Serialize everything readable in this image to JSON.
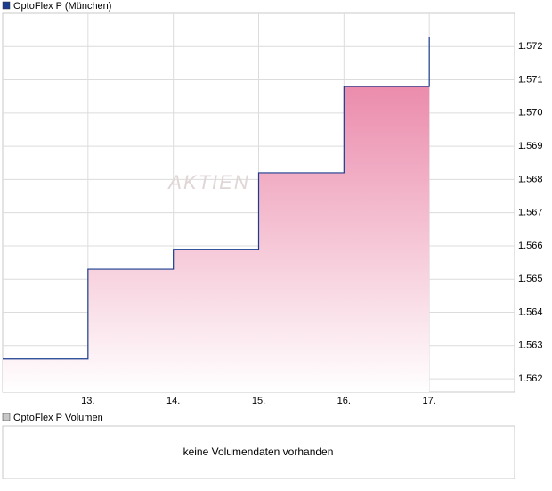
{
  "chart_data": {
    "type": "step-area",
    "title": "OptoFlex P (München)",
    "watermark": "AKTIEN",
    "x": [
      12,
      13,
      13,
      14,
      14,
      15,
      15,
      16,
      16,
      17,
      17
    ],
    "series": [
      {
        "name": "OptoFlex P (München)",
        "color": "#1a3d8f",
        "fill": "#e8799f",
        "values": [
          1.5626,
          1.5626,
          1.5653,
          1.5653,
          1.5659,
          1.5659,
          1.5682,
          1.5682,
          1.5708,
          1.5708,
          1.5723
        ]
      }
    ],
    "xlim": [
      12,
      18
    ],
    "xticks": [
      {
        "value": 13,
        "label": "13."
      },
      {
        "value": 14,
        "label": "14."
      },
      {
        "value": 15,
        "label": "15."
      },
      {
        "value": 16,
        "label": "16."
      },
      {
        "value": 17,
        "label": "17."
      }
    ],
    "ylim": [
      1.5616,
      1.573
    ],
    "yticks": [
      1.562,
      1.563,
      1.564,
      1.565,
      1.566,
      1.567,
      1.568,
      1.569,
      {
        "value": 1.57,
        "label": "1.570"
      },
      1.571,
      1.572
    ],
    "grid": true,
    "volume": {
      "title": "OptoFlex P Volumen",
      "message": "keine Volumendaten vorhanden",
      "color": "#c8c8c8"
    }
  }
}
